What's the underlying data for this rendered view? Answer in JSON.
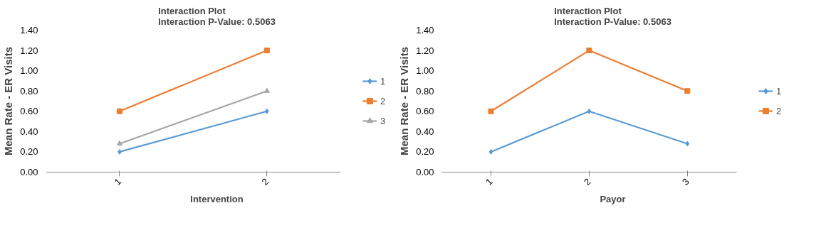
{
  "chart_data": [
    {
      "type": "line",
      "title": "Interaction Plot\nInteraction P-Value: 0.5063",
      "xlabel": "Intervention",
      "ylabel": "Mean Rate - ER Visits",
      "categories": [
        "1",
        "2"
      ],
      "ylim": [
        0,
        1.4
      ],
      "yticks": [
        {
          "value": 0,
          "label": "0.00"
        },
        {
          "value": 0.2,
          "label": "0.20"
        },
        {
          "value": 0.4,
          "label": "0.40"
        },
        {
          "value": 0.6,
          "label": "0.60"
        },
        {
          "value": 0.8,
          "label": "0.80"
        },
        {
          "value": 1.0,
          "label": "1.00"
        },
        {
          "value": 1.2,
          "label": "1.20"
        },
        {
          "value": 1.4,
          "label": "1.40"
        }
      ],
      "grid": false,
      "legend": "right",
      "line_style": "solid",
      "series": [
        {
          "name": "1",
          "color": "#5b9bd5",
          "marker": "diamond",
          "values": [
            0.2,
            0.6
          ]
        },
        {
          "name": "2",
          "color": "#ed7d31",
          "marker": "square",
          "values": [
            0.6,
            1.2
          ]
        },
        {
          "name": "3",
          "color": "#a5a5a5",
          "marker": "triangle",
          "values": [
            0.28,
            0.8
          ]
        }
      ]
    },
    {
      "type": "line",
      "title": "Interaction Plot\nInteraction P-Value: 0.5063",
      "xlabel": "Payor",
      "ylabel": "Mean Rate - ER Visits",
      "categories": [
        "1",
        "2",
        "3"
      ],
      "ylim": [
        0,
        1.4
      ],
      "yticks": [
        {
          "value": 0,
          "label": "0.00"
        },
        {
          "value": 0.2,
          "label": "0.20"
        },
        {
          "value": 0.4,
          "label": "0.40"
        },
        {
          "value": 0.6,
          "label": "0.60"
        },
        {
          "value": 0.8,
          "label": "0.80"
        },
        {
          "value": 1.0,
          "label": "1.00"
        },
        {
          "value": 1.2,
          "label": "1.20"
        },
        {
          "value": 1.4,
          "label": "1.40"
        }
      ],
      "grid": false,
      "legend": "right",
      "line_style": "solid",
      "series": [
        {
          "name": "1",
          "color": "#5b9bd5",
          "marker": "diamond",
          "values": [
            0.2,
            0.6,
            0.28
          ]
        },
        {
          "name": "2",
          "color": "#ed7d31",
          "marker": "square",
          "values": [
            0.6,
            1.2,
            0.8
          ]
        }
      ]
    }
  ]
}
